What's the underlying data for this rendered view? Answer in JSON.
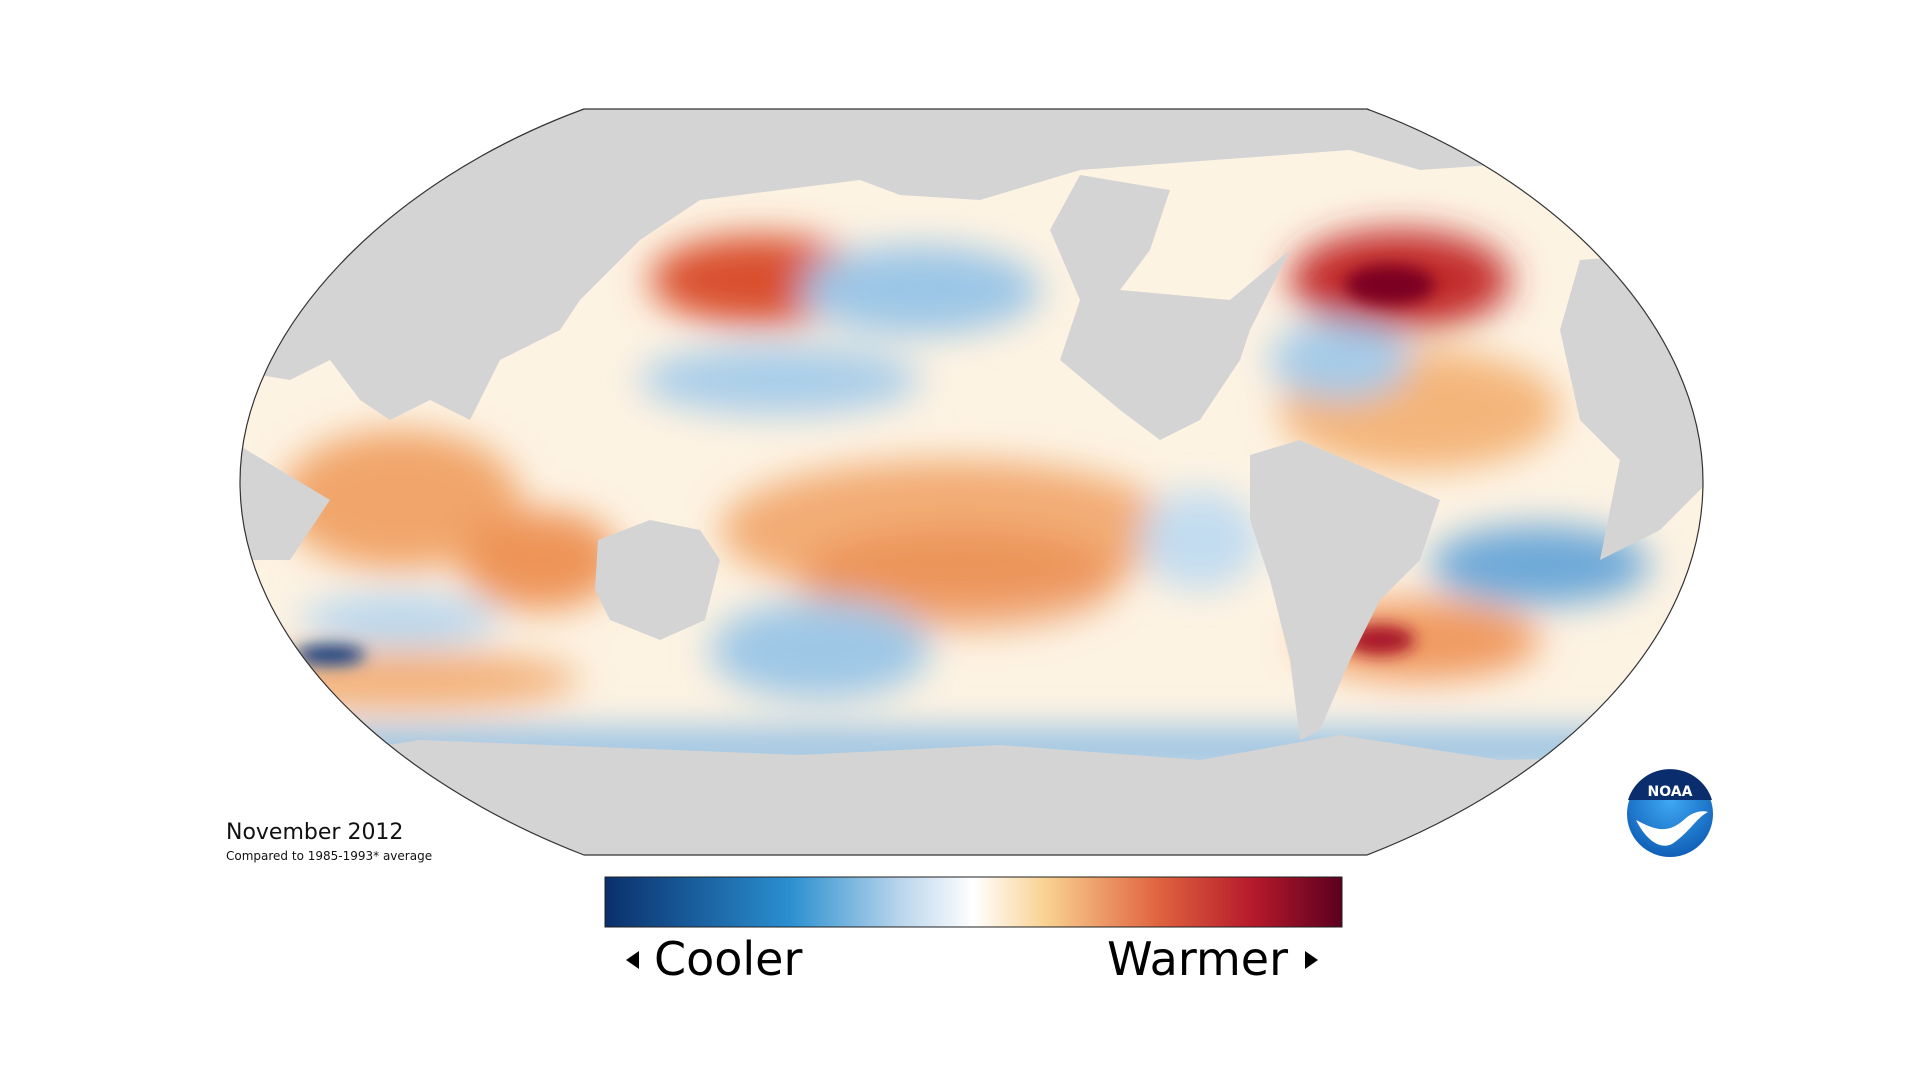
{
  "title": "November 2012",
  "subtitle": "Compared to 1985-1993* average",
  "legend": {
    "low": "Cooler",
    "high": "Warmer"
  },
  "logo": "NOAA"
}
